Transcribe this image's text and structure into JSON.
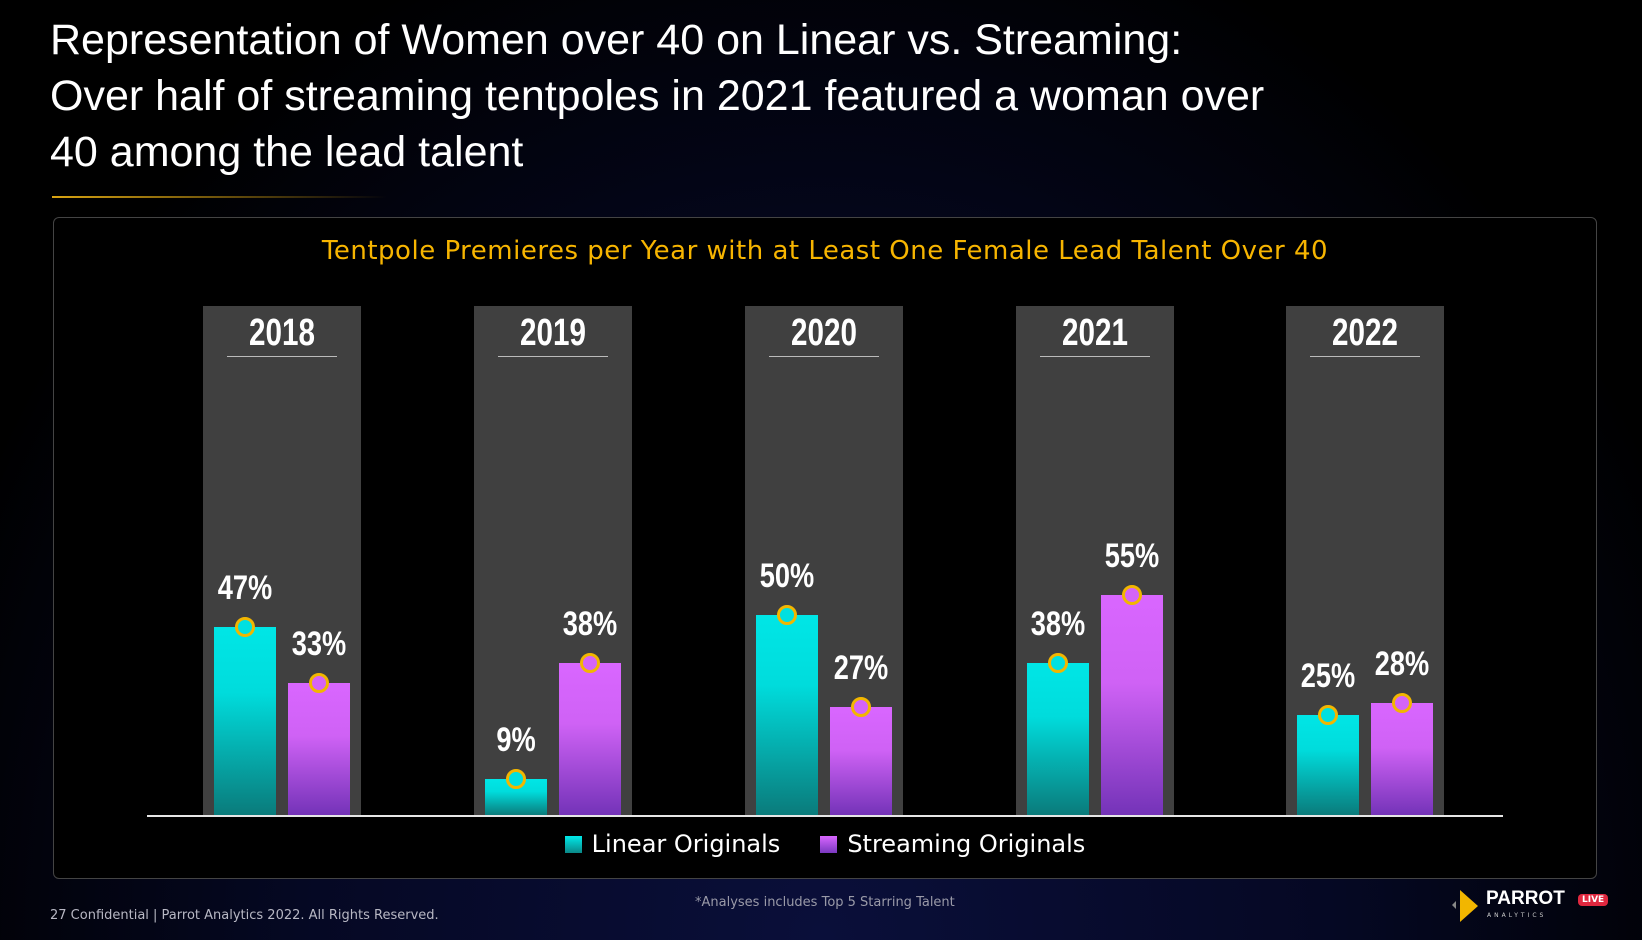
{
  "title": {
    "lines": [
      "Representation of Women over 40 on Linear vs. Streaming:",
      "Over half of streaming tentpoles in 2021 featured a woman over",
      "40 among the lead talent"
    ]
  },
  "colors": {
    "accent": "#f7b500",
    "linear": "#00e0e0",
    "streaming": "#d464f8",
    "panel": "#404040"
  },
  "chart_data": {
    "type": "bar",
    "title": "Tentpole Premieres per Year with at Least One Female Lead Talent Over 40",
    "categories": [
      "2018",
      "2019",
      "2020",
      "2021",
      "2022"
    ],
    "series": [
      {
        "name": "Linear Originals",
        "values": [
          47,
          9,
          50,
          38,
          25
        ],
        "labels": [
          "47%",
          "9%",
          "50%",
          "38%",
          "25%"
        ]
      },
      {
        "name": "Streaming Originals",
        "values": [
          33,
          38,
          27,
          55,
          28
        ],
        "labels": [
          "33%",
          "38%",
          "27%",
          "55%",
          "28%"
        ]
      }
    ],
    "ylim": [
      0,
      100
    ],
    "grid": false,
    "legend": "bottom"
  },
  "footer": {
    "page_info": "27  Confidential  |  Parrot Analytics 2022. All Rights Reserved.",
    "note": "*Analyses includes Top 5 Starring Talent"
  },
  "logo": {
    "name": "PARROT",
    "sub": "ANALYTICS",
    "badge": "LIVE"
  }
}
